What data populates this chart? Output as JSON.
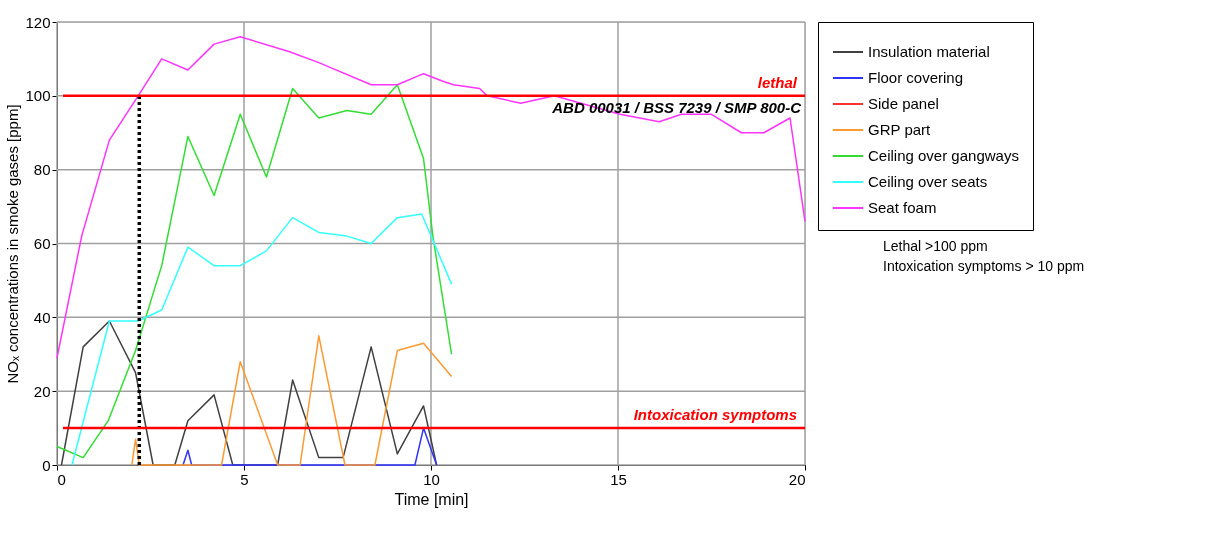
{
  "chart_data": {
    "type": "line",
    "xlabel": "Time [min]",
    "ylabel": "NOₓ concentrations in smoke gases [ppm]",
    "xlim": [
      0,
      20
    ],
    "ylim": [
      0,
      120
    ],
    "xticks": [
      0,
      5,
      10,
      15,
      20
    ],
    "yticks": [
      0,
      20,
      40,
      60,
      80,
      100,
      120
    ],
    "grid": true,
    "legend": "top right",
    "marker": "none",
    "line_style": "solid",
    "series": [
      {
        "name": "Insulation material",
        "color": "#404040",
        "x": [
          0.12,
          0.7,
          1.4,
          2.1,
          2.57,
          3.15,
          3.5,
          4.2,
          4.7,
          5.9,
          6.3,
          7.0,
          7.65,
          8.4,
          9.1,
          9.8,
          10.15
        ],
        "values": [
          0,
          32,
          39,
          25,
          0,
          0,
          12,
          19,
          0,
          0,
          23,
          2,
          2,
          32,
          3,
          16,
          0
        ]
      },
      {
        "name": "Floor covering",
        "color": "#3333ff",
        "x": [
          3.37,
          3.5,
          3.6,
          9.57,
          9.8,
          10.15
        ],
        "values": [
          0,
          4,
          0,
          0,
          10,
          0
        ]
      },
      {
        "name": "Side panel",
        "color": "#ff3333"
      },
      {
        "name": "GRP part",
        "color": "#ff9933",
        "x": [
          2.0,
          2.1,
          2.2,
          4.4,
          4.9,
          5.9,
          6.5,
          7.0,
          7.7,
          8.5,
          9.1,
          9.8,
          10.55
        ],
        "values": [
          0,
          7,
          0,
          0,
          28,
          0,
          0,
          35,
          0,
          0,
          31,
          33,
          24
        ]
      },
      {
        "name": "Ceiling over gangways",
        "color": "#33dd33",
        "x": [
          0,
          0.7,
          1.37,
          2.1,
          2.8,
          3.5,
          4.2,
          4.9,
          5.6,
          6.3,
          7.0,
          7.75,
          8.4,
          9.1,
          9.8,
          10.05,
          10.55
        ],
        "values": [
          5,
          2,
          12,
          31,
          54,
          89,
          73,
          95,
          78,
          102,
          94,
          96,
          95,
          103,
          83,
          62,
          30
        ]
      },
      {
        "name": "Ceiling over seats",
        "color": "#33ffff",
        "x": [
          0.4,
          1.4,
          2.17,
          2.8,
          3.5,
          4.2,
          4.9,
          5.6,
          6.3,
          7.0,
          7.75,
          8.4,
          9.1,
          9.75,
          10.55
        ],
        "values": [
          0,
          39,
          39,
          42,
          59,
          54,
          54,
          58,
          67,
          63,
          62,
          60,
          67,
          68,
          49
        ]
      },
      {
        "name": "Seat foam",
        "color": "#ff33ff",
        "x": [
          0,
          0.66,
          1.4,
          2.17,
          2.8,
          3.5,
          4.2,
          4.9,
          6.2,
          7.0,
          8.4,
          9.1,
          9.8,
          10.3,
          10.6,
          11.3,
          11.5,
          12.4,
          13.3,
          15.05,
          16.1,
          16.7,
          17.5,
          18.3,
          18.9,
          19.6,
          20
        ],
        "values": [
          29,
          62,
          88,
          100,
          110,
          107,
          114,
          116,
          112,
          109,
          103,
          103,
          106,
          104,
          103,
          102,
          100,
          98,
          100,
          95,
          93,
          95,
          95,
          90,
          90,
          94,
          66
        ]
      },
      {
        "color": "#000000",
        "line_style": "dotted",
        "x": [
          2.2,
          2.2
        ],
        "values": [
          0,
          100
        ]
      }
    ],
    "ref_lines": [
      {
        "axis": "y",
        "value": 100,
        "label": "lethal",
        "color": "#ff0000"
      },
      {
        "axis": "y",
        "value": 10,
        "label": "Intoxication symptoms",
        "color": "#ff0000"
      }
    ],
    "annotations": [
      "ABD 00031 / BSS 7239 / SMP 800-C",
      "Lethal  >100 ppm",
      "Intoxication symptoms > 10 ppm"
    ]
  }
}
